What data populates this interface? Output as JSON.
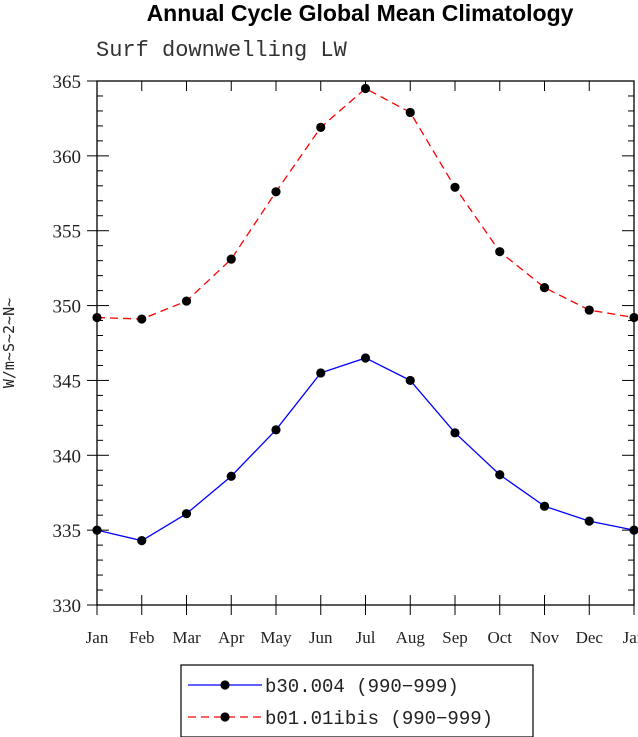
{
  "title": "Annual Cycle Global Mean Climatology",
  "subtitle": "Surf downwelling LW",
  "chart_data": {
    "type": "line",
    "title": "Annual Cycle Global Mean Climatology",
    "subtitle": "Surf downwelling LW",
    "ylabel": "W/m~S~2~N~",
    "xlabel": "",
    "categories": [
      "Jan",
      "Feb",
      "Mar",
      "Apr",
      "May",
      "Jun",
      "Jul",
      "Aug",
      "Sep",
      "Oct",
      "Nov",
      "Dec",
      "Jan"
    ],
    "ylim": [
      330,
      365
    ],
    "yticks": [
      330,
      335,
      340,
      345,
      350,
      355,
      360,
      365
    ],
    "legend_position": "bottom",
    "series": [
      {
        "name": "b30.004 (990-999)",
        "color": "#0000ff",
        "dash": "solid",
        "values": [
          335.0,
          334.3,
          336.1,
          338.6,
          341.7,
          345.5,
          346.5,
          345.0,
          341.5,
          338.7,
          336.6,
          335.6,
          335.0
        ]
      },
      {
        "name": "b01.01ibis (990-999)",
        "color": "#ff0000",
        "dash": "dashed",
        "values": [
          349.2,
          349.1,
          350.3,
          353.1,
          357.6,
          361.9,
          364.5,
          362.9,
          357.9,
          353.6,
          351.2,
          349.7,
          349.2
        ]
      }
    ]
  }
}
